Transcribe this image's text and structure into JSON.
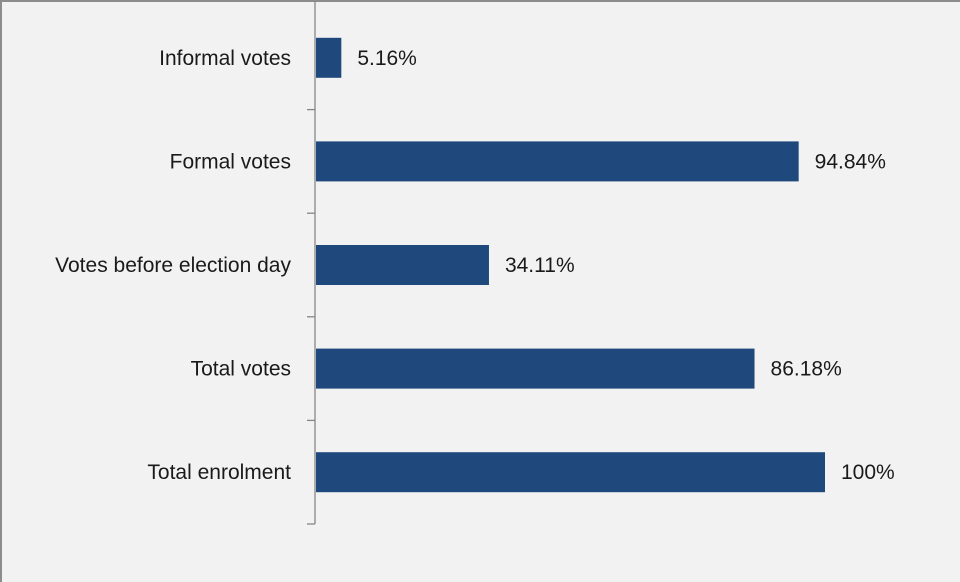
{
  "chart_data": {
    "type": "bar",
    "orientation": "horizontal",
    "categories": [
      "Informal votes",
      "Formal votes",
      "Votes before election day",
      "Total votes",
      "Total enrolment"
    ],
    "values": [
      5.16,
      94.84,
      34.11,
      86.18,
      100
    ],
    "data_labels": [
      "5.16%",
      "94.84%",
      "34.11%",
      "86.18%",
      "100%"
    ],
    "xlim": [
      0,
      100
    ],
    "grid": false,
    "legend": "none",
    "bar_color": "#1f497d",
    "axis_color": "#868686",
    "background_color": "#f2f2f2"
  }
}
